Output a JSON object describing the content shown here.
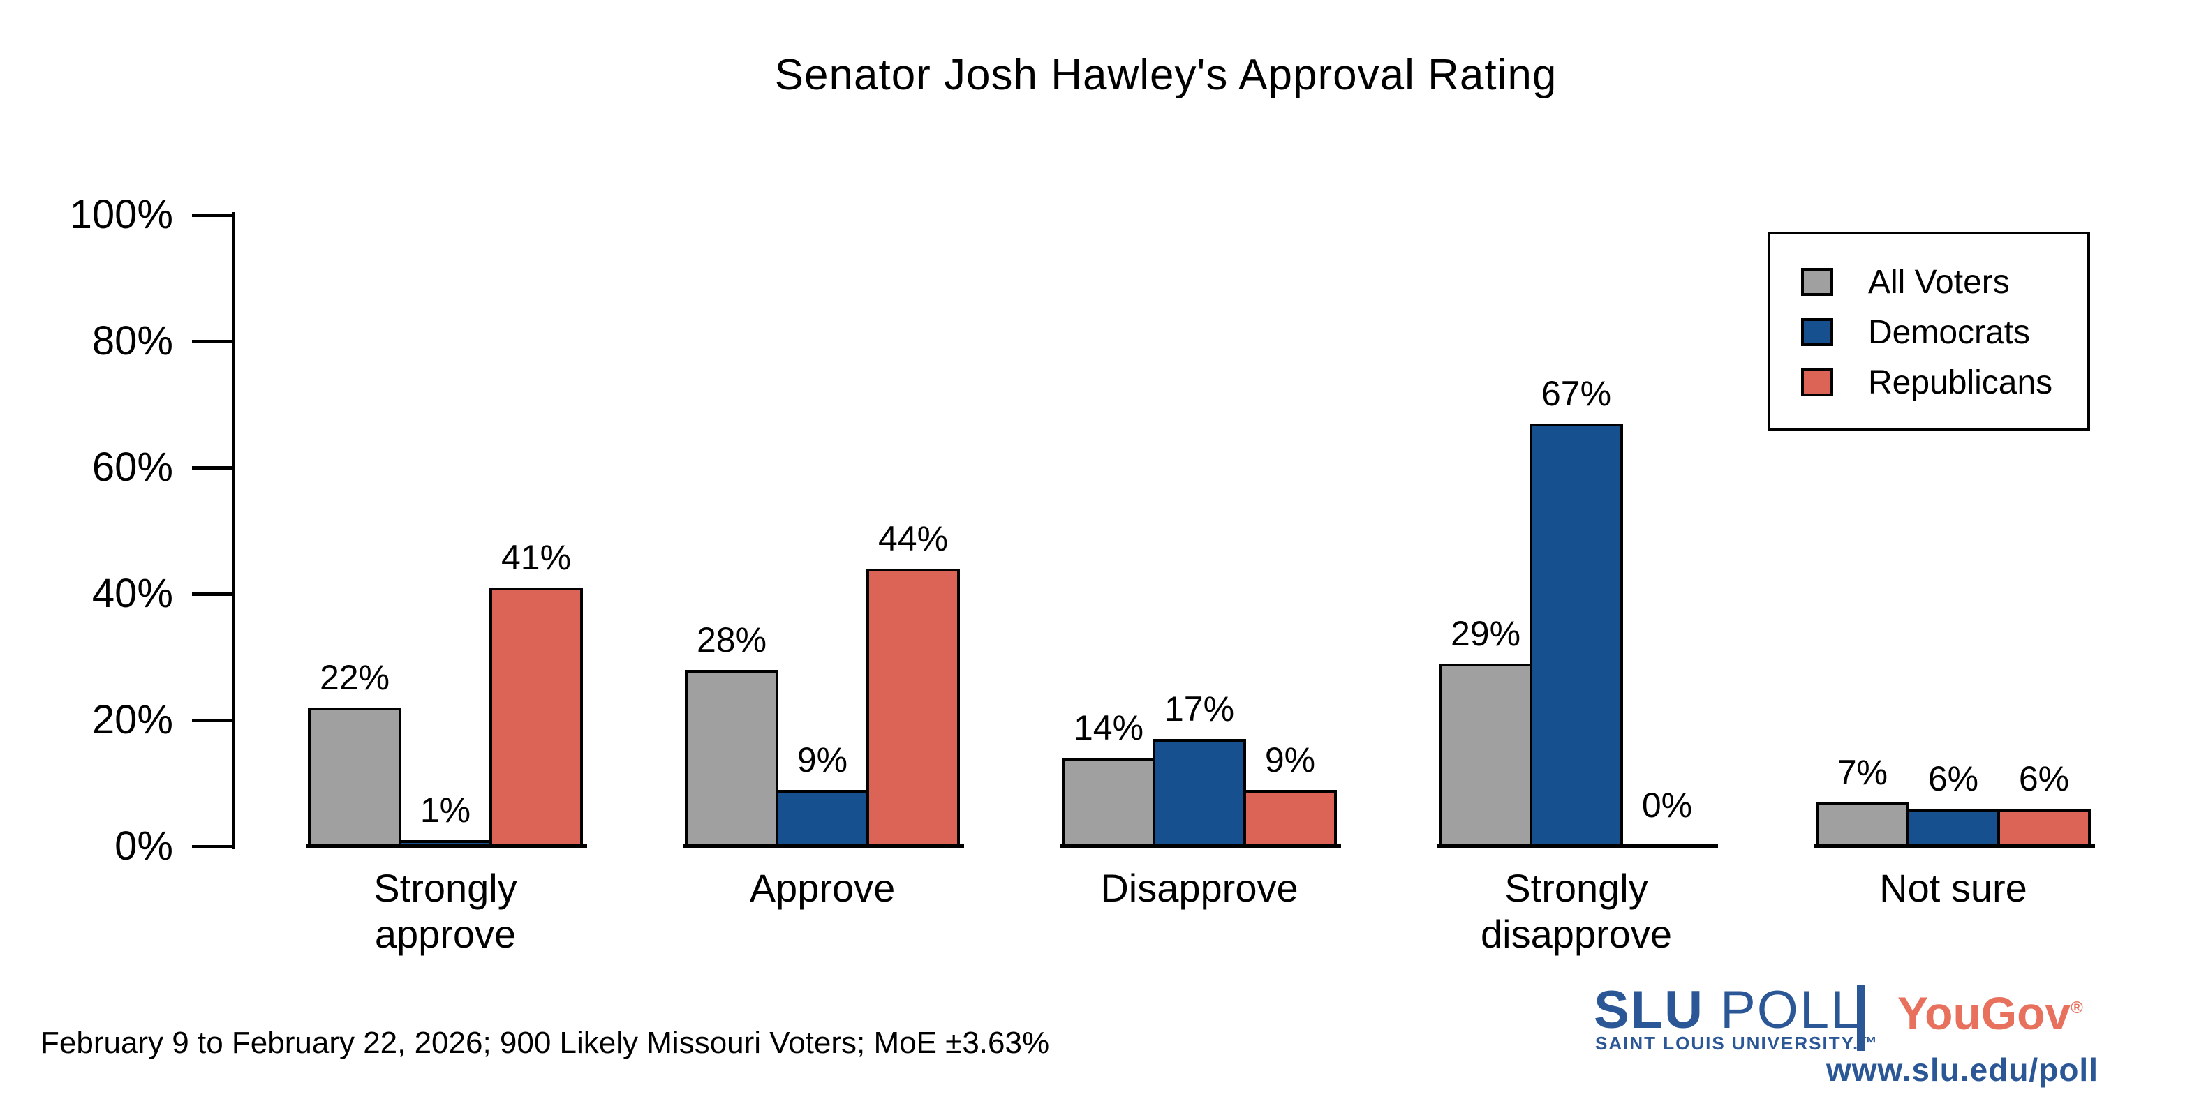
{
  "title": "Senator Josh Hawley's Approval Rating",
  "chart_data": {
    "type": "bar",
    "categories": [
      "Strongly approve",
      "Approve",
      "Disapprove",
      "Strongly disapprove",
      "Not sure"
    ],
    "series": [
      {
        "name": "All Voters",
        "color": "#a0a0a0",
        "values": [
          22,
          28,
          14,
          29,
          7
        ]
      },
      {
        "name": "Democrats",
        "color": "#17508f",
        "values": [
          1,
          9,
          17,
          67,
          6
        ]
      },
      {
        "name": "Republicans",
        "color": "#db6456",
        "values": [
          41,
          44,
          9,
          0,
          6
        ]
      }
    ],
    "value_label_format": "percent",
    "xlabel": "",
    "ylabel": "",
    "ylim": [
      0,
      100
    ],
    "yticks": [
      "0%",
      "20%",
      "40%",
      "60%",
      "80%",
      "100%"
    ],
    "grid": false,
    "legend_position": "top-right",
    "bar_outline_color": "#000000"
  },
  "footer": {
    "note": "February 9 to February 22, 2026; 900 Likely Missouri Voters; MoE ±3.63%"
  },
  "branding": {
    "slu": "SLU",
    "poll": " POLL",
    "slu_sub": "SAINT LOUIS UNIVERSITY.",
    "slu_tm": "™",
    "yougov": "YouGov",
    "yougov_reg": "®",
    "url": "www.slu.edu/poll",
    "slu_blue": "#2b5796",
    "yougov_red": "#e8715e"
  }
}
